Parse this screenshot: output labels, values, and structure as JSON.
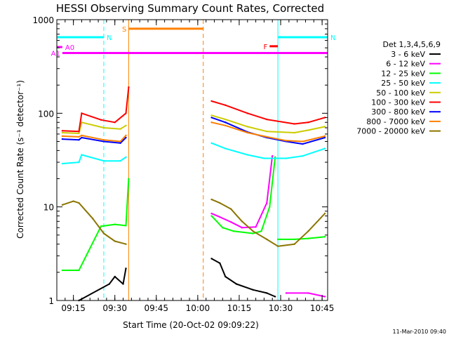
{
  "colors": {
    "3 - 6 keV": "#000000",
    "6 - 12 keV": "#ff00ff",
    "12 - 25 keV": "#00ff00",
    "25 - 50 keV": "#00ffff",
    "50 - 100 keV": "#cccc00",
    "100 - 300 keV": "#ff0000",
    "300 - 800 keV": "#0000ff",
    "800 - 7000 keV": "#ff8000",
    "7000 - 20000 keV": "#8b7500",
    "flag_N": "#00ffff",
    "flag_S": "#ff8000",
    "flag_F": "#ff0000",
    "flag_A": "#ff00ff"
  },
  "chart_data": {
    "type": "line",
    "title": "HESSI Observing Summary Count Rates, Corrected",
    "xlabel": "Start Time (20-Oct-02 09:09:22)",
    "ylabel": "Corrected Count Rate (s⁻¹ detector⁻¹)",
    "xlim": [
      "09:09",
      "10:47"
    ],
    "ylim": [
      1,
      1000
    ],
    "yscale": "log",
    "grid": false,
    "legend_position": "right",
    "legend_title": "Det 1,3,4,5,6,9",
    "x_ticks": [
      "09:15",
      "09:30",
      "09:45",
      "10:00",
      "10:15",
      "10:30",
      "10:45"
    ],
    "y_ticks": [
      "1",
      "10",
      "100",
      "1000"
    ],
    "timestamp": "11-Mar-2010 09:40",
    "flags": [
      {
        "label": "N",
        "start": "09:09",
        "end": "09:26",
        "value": 650
      },
      {
        "label": "N",
        "start": "10:29",
        "end": "10:47",
        "value": 650
      },
      {
        "label": "S",
        "start": "09:35",
        "end": "10:02",
        "value": 800
      },
      {
        "label": "F",
        "start": "10:26",
        "end": "10:29",
        "value": 520
      },
      {
        "label": "A0",
        "start": "09:09",
        "end": "09:11",
        "value": 510
      },
      {
        "label": "A1",
        "start": "09:11",
        "end": "10:47",
        "value": 440
      }
    ],
    "gaps": [
      {
        "start": "09:09",
        "end": "09:09",
        "style": "solid",
        "color": "flag_N"
      },
      {
        "start": "09:26",
        "end": "09:26",
        "style": "dashed",
        "color": "flag_N"
      },
      {
        "start": "09:35",
        "end": "09:35",
        "style": "solid",
        "color": "flag_S"
      },
      {
        "start": "10:02",
        "end": "10:02",
        "style": "dashed",
        "color": "flag_S"
      },
      {
        "start": "10:29",
        "end": "10:29",
        "style": "solid",
        "color": "flag_N"
      },
      {
        "start": "10:47",
        "end": "10:47",
        "style": "dashed",
        "color": "flag_N"
      }
    ],
    "series": [
      {
        "name": "3 - 6 keV",
        "segments": [
          {
            "x": [
              "09:17",
              "09:28",
              "09:30",
              "09:33",
              "09:34"
            ],
            "y": [
              1.0,
              1.5,
              1.8,
              1.5,
              2.2
            ]
          },
          {
            "x": [
              "10:05",
              "10:08",
              "10:10",
              "10:14",
              "10:20",
              "10:25",
              "10:28"
            ],
            "y": [
              2.8,
              2.5,
              1.8,
              1.5,
              1.3,
              1.2,
              1.1
            ]
          }
        ]
      },
      {
        "name": "6 - 12 keV",
        "segments": [
          {
            "x": [
              "10:05",
              "10:08",
              "10:12",
              "10:16",
              "10:21",
              "10:25",
              "10:27"
            ],
            "y": [
              8.5,
              7.8,
              6.9,
              6.0,
              6.1,
              11,
              35
            ]
          },
          {
            "x": [
              "10:32",
              "10:40",
              "10:46"
            ],
            "y": [
              1.2,
              1.2,
              1.1
            ]
          }
        ]
      },
      {
        "name": "12 - 25 keV",
        "segments": [
          {
            "x": [
              "09:11",
              "09:16",
              "09:17",
              "09:25",
              "09:30",
              "09:34",
              "09:35"
            ],
            "y": [
              2.1,
              2.1,
              2.1,
              6.2,
              6.5,
              6.3,
              20
            ]
          },
          {
            "x": [
              "10:05",
              "10:09",
              "10:13",
              "10:20",
              "10:23",
              "10:26",
              "10:28"
            ],
            "y": [
              8.0,
              6.0,
              5.5,
              5.2,
              5.5,
              10,
              34
            ]
          },
          {
            "x": [
              "10:29",
              "10:35",
              "10:40",
              "10:46"
            ],
            "y": [
              4.5,
              4.5,
              4.6,
              4.8
            ]
          }
        ]
      },
      {
        "name": "25 - 50 keV",
        "segments": [
          {
            "x": [
              "09:11",
              "09:17",
              "09:18",
              "09:26",
              "09:32",
              "09:34"
            ],
            "y": [
              29,
              30,
              36,
              31,
              31,
              34
            ]
          },
          {
            "x": [
              "10:05",
              "10:10",
              "10:18",
              "10:24",
              "10:32",
              "10:38",
              "10:46"
            ],
            "y": [
              48,
              42,
              36,
              33,
              33,
              35,
              42
            ]
          }
        ]
      },
      {
        "name": "50 - 100 keV",
        "segments": [
          {
            "x": [
              "09:11",
              "09:17",
              "09:18",
              "09:26",
              "09:32",
              "09:34"
            ],
            "y": [
              62,
              61,
              80,
              70,
              68,
              74
            ]
          },
          {
            "x": [
              "10:05",
              "10:10",
              "10:18",
              "10:25",
              "10:35",
              "10:40",
              "10:46"
            ],
            "y": [
              95,
              86,
              72,
              64,
              62,
              66,
              72
            ]
          }
        ]
      },
      {
        "name": "100 - 300 keV",
        "segments": [
          {
            "x": [
              "09:11",
              "09:17",
              "09:18",
              "09:25",
              "09:30",
              "09:34",
              "09:35"
            ],
            "y": [
              65,
              64,
              100,
              85,
              80,
              100,
              190
            ]
          },
          {
            "x": [
              "10:05",
              "10:10",
              "10:18",
              "10:25",
              "10:35",
              "10:40",
              "10:46"
            ],
            "y": [
              135,
              122,
              100,
              86,
              77,
              80,
              90
            ]
          }
        ]
      },
      {
        "name": "300 - 800 keV",
        "segments": [
          {
            "x": [
              "09:11",
              "09:17",
              "09:18",
              "09:26",
              "09:32",
              "09:34"
            ],
            "y": [
              53,
              52,
              55,
              50,
              48,
              55
            ]
          },
          {
            "x": [
              "10:05",
              "10:10",
              "10:18",
              "10:25",
              "10:32",
              "10:38",
              "10:46"
            ],
            "y": [
              90,
              80,
              63,
              55,
              50,
              47,
              55
            ]
          }
        ]
      },
      {
        "name": "800 - 7000 keV",
        "segments": [
          {
            "x": [
              "09:11",
              "09:17",
              "09:18",
              "09:26",
              "09:32",
              "09:34"
            ],
            "y": [
              57,
              56,
              58,
              52,
              50,
              58
            ]
          },
          {
            "x": [
              "10:05",
              "10:10",
              "10:18",
              "10:25",
              "10:32",
              "10:38",
              "10:46"
            ],
            "y": [
              80,
              74,
              62,
              56,
              51,
              50,
              57
            ]
          }
        ]
      },
      {
        "name": "7000 - 20000 keV",
        "segments": [
          {
            "x": [
              "09:11",
              "09:15",
              "09:17",
              "09:22",
              "09:26",
              "09:30",
              "09:34"
            ],
            "y": [
              10.5,
              11.5,
              11.0,
              7.5,
              5.2,
              4.3,
              4.0
            ]
          },
          {
            "x": [
              "10:05",
              "10:08",
              "10:12",
              "10:16",
              "10:20",
              "10:25",
              "10:29",
              "10:35",
              "10:40",
              "10:46"
            ],
            "y": [
              12,
              11,
              9.5,
              7.0,
              5.5,
              4.5,
              3.8,
              4.0,
              5.5,
              8.5
            ]
          }
        ]
      }
    ]
  }
}
